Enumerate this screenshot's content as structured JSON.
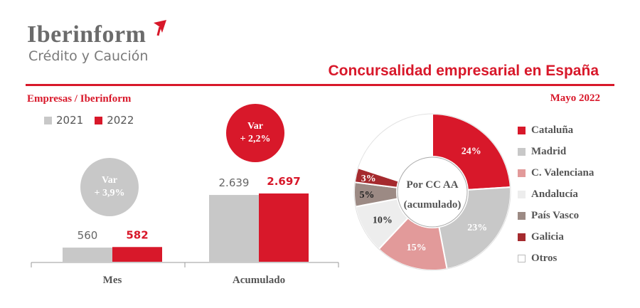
{
  "brand": {
    "name": "Iberinform",
    "sub": "Crédito y Caución",
    "accent": "#d8182a"
  },
  "header": {
    "title": "Concursalidad empresarial en España",
    "left_subtitle": "Empresas / Iberinform",
    "date": "Mayo 2022"
  },
  "chart_data": [
    {
      "type": "bar",
      "categories": [
        "Mes",
        "Acumulado"
      ],
      "series": [
        {
          "name": "2021",
          "color": "#c8c8c8",
          "values": [
            560,
            2639
          ],
          "labels": [
            "560",
            "2.639"
          ]
        },
        {
          "name": "2022",
          "color": "#d8182a",
          "values": [
            582,
            2697
          ],
          "labels": [
            "582",
            "2.697"
          ]
        }
      ],
      "annotations": [
        {
          "category": "Mes",
          "line1": "Var",
          "line2": "+ 3,9%",
          "color": "#c8c8c8"
        },
        {
          "category": "Acumulado",
          "line1": "Var",
          "line2": "+ 2,2%",
          "color": "#d8182a"
        }
      ],
      "legend": "top-left"
    },
    {
      "type": "pie",
      "style": "donut",
      "center_label": [
        "Por CC AA",
        "(acumulado)"
      ],
      "slices": [
        {
          "name": "Cataluña",
          "value": 24,
          "label": "24%",
          "color": "#d8182a"
        },
        {
          "name": "Madrid",
          "value": 23,
          "label": "23%",
          "color": "#c8c8c8"
        },
        {
          "name": "C. Valenciana",
          "value": 15,
          "label": "15%",
          "color": "#e29a9a"
        },
        {
          "name": "Andalucía",
          "value": 10,
          "label": "10%",
          "color": "#ededed"
        },
        {
          "name": "País Vasco",
          "value": 5,
          "label": "5%",
          "color": "#9c8a84"
        },
        {
          "name": "Galicia",
          "value": 3,
          "label": "3%",
          "color": "#a52a2e"
        },
        {
          "name": "Otros",
          "value": 20,
          "label": "",
          "color": "#ffffff"
        }
      ],
      "legend": "right"
    }
  ]
}
